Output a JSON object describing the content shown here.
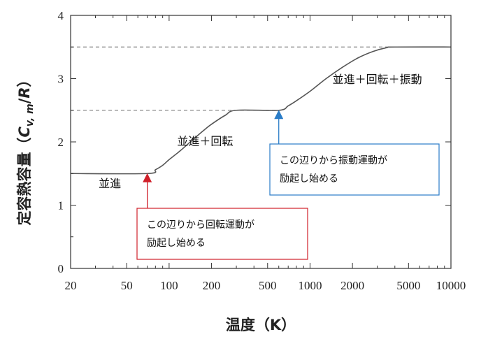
{
  "chart_data": {
    "type": "line",
    "xlabel": "温度（K）",
    "ylabel_parts": {
      "prefix": "定容熱容量（",
      "c": "C",
      "sub": "v, m",
      "slash": "/",
      "r": "R",
      "suffix": "）"
    },
    "x_scale": "log",
    "xlim": [
      20,
      10000
    ],
    "ylim": [
      0,
      4
    ],
    "x_ticks": [
      20,
      50,
      100,
      200,
      500,
      1000,
      2000,
      5000,
      10000
    ],
    "x_tick_labels": [
      "20",
      "50",
      "100",
      "200",
      "500",
      "1000",
      "2000",
      "5000",
      "10000"
    ],
    "y_ticks": [
      0,
      1,
      2,
      3,
      4
    ],
    "y_tick_labels": [
      "0",
      "1",
      "2",
      "3",
      "4"
    ],
    "grid": false,
    "series": [
      {
        "x": [
          20,
          70,
          80,
          90,
          100,
          120,
          150,
          180,
          200,
          250,
          300,
          600,
          700,
          800,
          1000,
          1300,
          1700,
          2200,
          2800,
          3500,
          4000,
          10000
        ],
        "y": [
          1.5,
          1.5,
          1.56,
          1.63,
          1.72,
          1.86,
          2.05,
          2.2,
          2.28,
          2.42,
          2.5,
          2.5,
          2.57,
          2.65,
          2.8,
          3.0,
          3.18,
          3.33,
          3.43,
          3.49,
          3.5,
          3.5
        ]
      }
    ],
    "reference_lines": [
      {
        "y": 2.5,
        "x_from": 20,
        "x_to": 600,
        "style": "dashed"
      },
      {
        "y": 3.5,
        "x_from": 20,
        "x_to": 10000,
        "style": "dashed"
      }
    ],
    "region_labels": [
      {
        "text": "並進",
        "x": 38,
        "y": 1.28
      },
      {
        "text": "並進＋回転",
        "x": 180,
        "y": 1.95
      },
      {
        "text": "並進＋回転＋振動",
        "x": 3000,
        "y": 2.93
      }
    ],
    "annotations": [
      {
        "lines": [
          "この辺りから回転運動が",
          "励起し始める"
        ],
        "arrow_x": 70,
        "arrow_y": 1.5,
        "border_color": "#d0202a",
        "arrow_color": "#d0202a"
      },
      {
        "lines": [
          "この辺りから振動運動が",
          "励起し始める"
        ],
        "arrow_x": 600,
        "arrow_y": 2.5,
        "border_color": "#2a7cc7",
        "arrow_color": "#2a7cc7"
      }
    ],
    "colors": {
      "line": "#555555",
      "dashed": "#8a8a8a",
      "axis": "#333333"
    }
  }
}
